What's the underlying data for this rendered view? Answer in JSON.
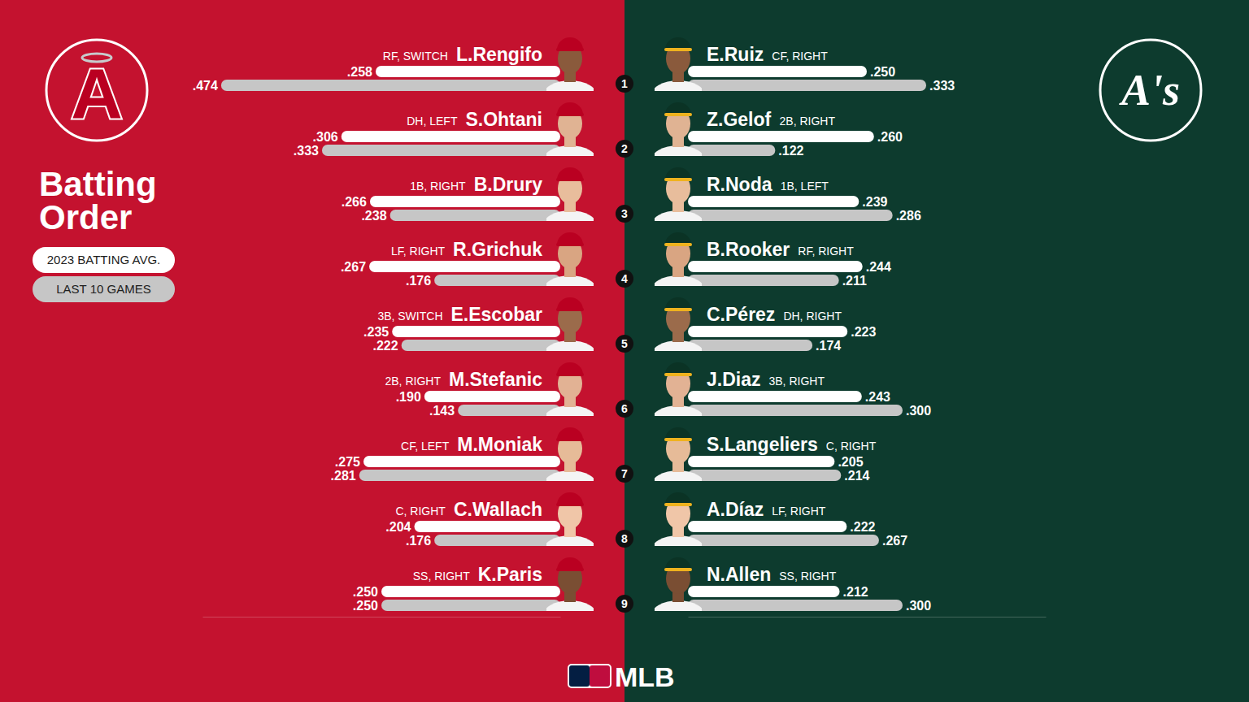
{
  "chart_data": [
    {
      "type": "bar",
      "orientation": "horizontal",
      "title": "Batting Order",
      "team_logo": "A",
      "categories": [
        "L.Rengifo",
        "S.Ohtani",
        "B.Drury",
        "R.Grichuk",
        "E.Escobar",
        "M.Stefanic",
        "M.Moniak",
        "C.Wallach",
        "K.Paris"
      ],
      "positions": [
        "RF, SWITCH",
        "DH, LEFT",
        "1B, RIGHT",
        "LF, RIGHT",
        "3B, SWITCH",
        "2B, RIGHT",
        "CF, LEFT",
        "C, RIGHT",
        "SS, RIGHT"
      ],
      "series": [
        {
          "name": "2023 BATTING AVG.",
          "color": "#ffffff",
          "values": [
            0.258,
            0.306,
            0.266,
            0.267,
            0.235,
            0.19,
            0.275,
            0.204,
            0.25
          ],
          "value_labels": [
            ".258",
            ".306",
            ".266",
            ".267",
            ".235",
            ".190",
            ".275",
            ".204",
            ".250"
          ]
        },
        {
          "name": "LAST 10 GAMES",
          "color": "#c6c6c6",
          "values": [
            0.474,
            0.333,
            0.238,
            0.176,
            0.222,
            0.143,
            0.281,
            0.176,
            0.25
          ],
          "value_labels": [
            ".474",
            ".333",
            ".238",
            ".176",
            ".222",
            ".143",
            ".281",
            ".176",
            ".250"
          ]
        }
      ],
      "xlim": [
        0,
        0.5
      ],
      "data_labels": true,
      "tick_labels": false,
      "legend": "left"
    },
    {
      "type": "bar",
      "orientation": "horizontal",
      "team_logo": "A's",
      "categories": [
        "E.Ruiz",
        "Z.Gelof",
        "R.Noda",
        "B.Rooker",
        "C.Pérez",
        "J.Diaz",
        "S.Langeliers",
        "A.Díaz",
        "N.Allen"
      ],
      "positions": [
        "CF, RIGHT",
        "2B, RIGHT",
        "1B, LEFT",
        "RF, RIGHT",
        "DH, RIGHT",
        "3B, RIGHT",
        "C, RIGHT",
        "LF, RIGHT",
        "SS, RIGHT"
      ],
      "series": [
        {
          "color": "#ffffff",
          "values": [
            0.25,
            0.26,
            0.239,
            0.244,
            0.223,
            0.243,
            0.205,
            0.222,
            0.212
          ],
          "value_labels": [
            ".250",
            ".260",
            ".239",
            ".244",
            ".223",
            ".243",
            ".205",
            ".222",
            ".212"
          ]
        },
        {
          "color": "#c6c6c6",
          "values": [
            0.333,
            0.122,
            0.286,
            0.211,
            0.174,
            0.3,
            0.214,
            0.267,
            0.3
          ],
          "value_labels": [
            ".333",
            ".122",
            ".286",
            ".211",
            ".174",
            ".300",
            ".214",
            ".267",
            ".300"
          ]
        }
      ],
      "xlim": [
        0,
        0.5
      ],
      "data_labels": true,
      "tick_labels": false
    }
  ],
  "batting_order": [
    "1",
    "2",
    "3",
    "4",
    "5",
    "6",
    "7",
    "8",
    "9"
  ],
  "footer": "MLB"
}
